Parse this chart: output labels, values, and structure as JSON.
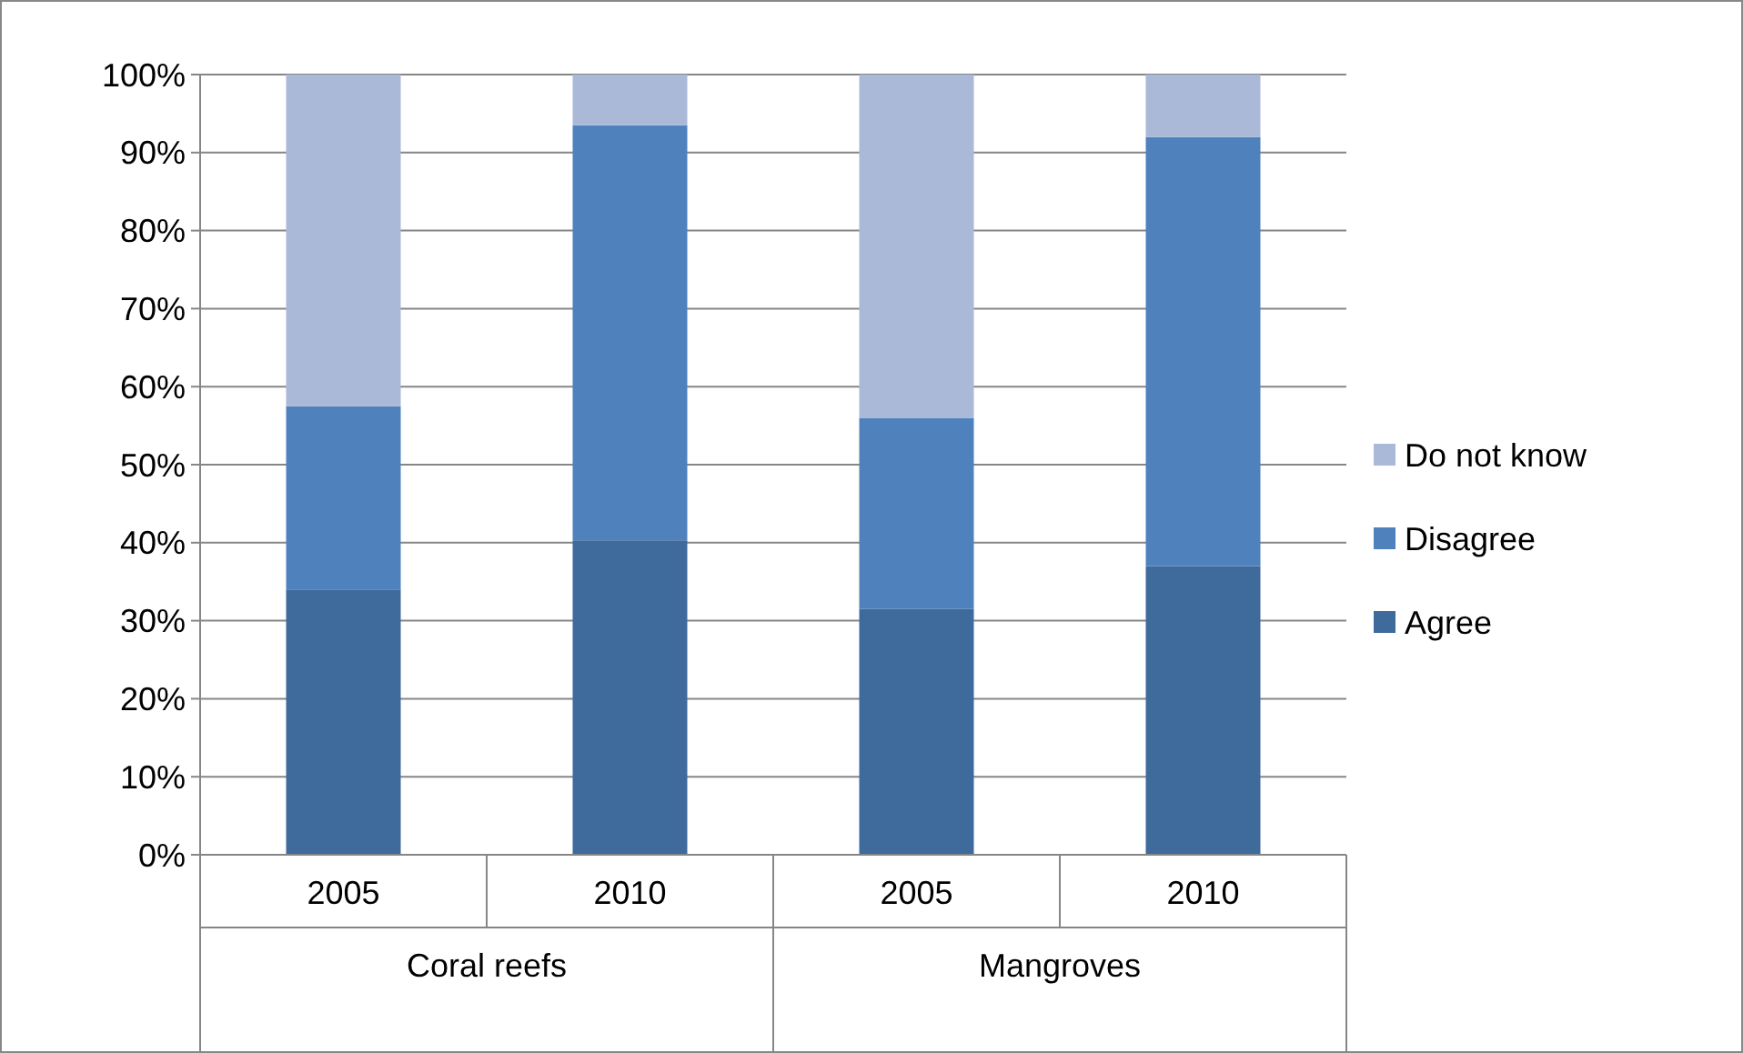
{
  "chart_data": {
    "type": "bar",
    "stacked": true,
    "categories": [
      "2005",
      "2010",
      "2005",
      "2010"
    ],
    "series": [
      {
        "name": "Agree",
        "color": "#3f6a9c",
        "values": [
          34,
          40.3,
          31.5,
          37
        ]
      },
      {
        "name": "Disagree",
        "color": "#4f81bd",
        "values": [
          23.5,
          53.2,
          24.5,
          55
        ]
      },
      {
        "name": "Do not know",
        "color": "#aab9d8",
        "values": [
          42.5,
          6.5,
          44,
          8
        ]
      }
    ],
    "ylim": [
      0,
      100
    ],
    "yticks": [
      {
        "value": 0,
        "label": "0%"
      },
      {
        "value": 10,
        "label": "10%"
      },
      {
        "value": 20,
        "label": "20%"
      },
      {
        "value": 30,
        "label": "30%"
      },
      {
        "value": 40,
        "label": "40%"
      },
      {
        "value": 50,
        "label": "50%"
      },
      {
        "value": 60,
        "label": "60%"
      },
      {
        "value": 70,
        "label": "70%"
      },
      {
        "value": 80,
        "label": "80%"
      },
      {
        "value": 90,
        "label": "90%"
      },
      {
        "value": 100,
        "label": "100%"
      }
    ],
    "grid": "y",
    "legend": "right",
    "annotations": [
      "Coral reefs",
      "Mangroves"
    ]
  }
}
